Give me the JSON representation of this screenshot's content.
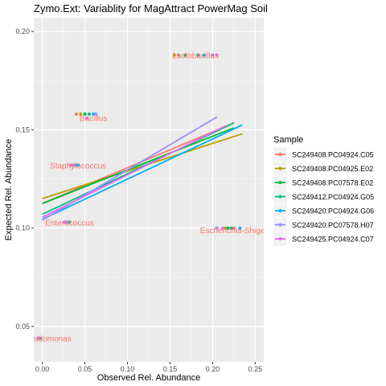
{
  "chart_data": {
    "type": "scatter",
    "title": "Zymo.Ext: Variablity for MagAttract PowerMag Soil",
    "xlabel": "Observed Rel. Abundance",
    "ylabel": "Expected Rel. Abundance",
    "xlim": [
      -0.01,
      0.26
    ],
    "ylim": [
      0.032,
      0.207
    ],
    "xticks": [
      0.0,
      0.05,
      0.1,
      0.15,
      0.2,
      0.25
    ],
    "xtick_labels": [
      "0.00",
      "0.05",
      "0.10",
      "0.15",
      "0.20",
      "0.25"
    ],
    "yticks": [
      0.05,
      0.1,
      0.15,
      0.2
    ],
    "ytick_labels": [
      "0.05",
      "0.10",
      "0.15",
      "0.20"
    ],
    "grid": true,
    "legend": {
      "title": "Sample",
      "placement": "right"
    },
    "series": [
      {
        "name": "SC249408.PC04924.C05",
        "color": "#f8766d",
        "points": [
          [
            0.04,
            0.158
          ],
          [
            0.033,
            0.132
          ],
          [
            0.028,
            0.103
          ],
          [
            0.16,
            0.188
          ],
          [
            0.225,
            0.1
          ],
          [
            -0.005,
            0.044
          ]
        ],
        "fit": [
          [
            0.0,
            0.1125
          ],
          [
            0.225,
            0.1535
          ]
        ]
      },
      {
        "name": "SC249408.PC04925.E02",
        "color": "#b79f00",
        "points": [
          [
            0.045,
            0.158
          ],
          [
            0.038,
            0.132
          ],
          [
            0.032,
            0.103
          ],
          [
            0.155,
            0.188
          ],
          [
            0.215,
            0.1
          ],
          [
            -0.004,
            0.044
          ]
        ],
        "fit": [
          [
            0.0,
            0.115
          ],
          [
            0.235,
            0.148
          ]
        ]
      },
      {
        "name": "SC249408.PC07578.E02",
        "color": "#00ba38",
        "points": [
          [
            0.05,
            0.158
          ],
          [
            0.036,
            0.132
          ],
          [
            0.03,
            0.103
          ],
          [
            0.168,
            0.188
          ],
          [
            0.218,
            0.1
          ],
          [
            -0.003,
            0.044
          ]
        ],
        "fit": [
          [
            0.0,
            0.1125
          ],
          [
            0.225,
            0.151
          ]
        ]
      },
      {
        "name": "SC249412.PC04924.G05",
        "color": "#00bf7d",
        "points": [
          [
            0.055,
            0.158
          ],
          [
            0.04,
            0.132
          ],
          [
            0.027,
            0.103
          ],
          [
            0.183,
            0.188
          ],
          [
            0.222,
            0.1
          ],
          [
            -0.004,
            0.044
          ]
        ],
        "fit": [
          [
            0.0,
            0.107
          ],
          [
            0.225,
            0.1535
          ]
        ]
      },
      {
        "name": "SC249420.PC04924.G06",
        "color": "#00b0f6",
        "points": [
          [
            0.06,
            0.158
          ],
          [
            0.042,
            0.132
          ],
          [
            0.031,
            0.103
          ],
          [
            0.19,
            0.188
          ],
          [
            0.232,
            0.1
          ],
          [
            -0.004,
            0.044
          ]
        ],
        "fit": [
          [
            0.0,
            0.1045
          ],
          [
            0.235,
            0.1525
          ]
        ]
      },
      {
        "name": "SC249420.PC07578.H07",
        "color": "#9590ff",
        "points": [
          [
            0.063,
            0.158
          ],
          [
            0.037,
            0.132
          ],
          [
            0.029,
            0.103
          ],
          [
            0.2,
            0.188
          ],
          [
            0.205,
            0.1
          ],
          [
            -0.005,
            0.044
          ]
        ],
        "fit": [
          [
            0.0,
            0.104
          ],
          [
            0.205,
            0.1565
          ]
        ]
      },
      {
        "name": "SC249425.PC04924.C07",
        "color": "#e76bf3",
        "points": [
          [
            0.052,
            0.156
          ],
          [
            0.034,
            0.132
          ],
          [
            0.026,
            0.103
          ],
          [
            0.205,
            0.188
          ],
          [
            0.212,
            0.1
          ],
          [
            -0.004,
            0.044
          ]
        ],
        "fit": [
          [
            0.0,
            0.1055
          ],
          [
            0.215,
            0.152
          ]
        ]
      }
    ],
    "annotations": [
      {
        "text": "Lactobacillus",
        "x": 0.18,
        "y": 0.188
      },
      {
        "text": "Bacillus",
        "x": 0.06,
        "y": 0.156
      },
      {
        "text": "Staphylococcus",
        "x": 0.042,
        "y": 0.132
      },
      {
        "text": "Enterococcus",
        "x": 0.032,
        "y": 0.103
      },
      {
        "text": "Escherichia-Shigella",
        "x": 0.228,
        "y": 0.099
      },
      {
        "text": "Pseudomonas",
        "x": 0.004,
        "y": 0.044
      }
    ]
  }
}
